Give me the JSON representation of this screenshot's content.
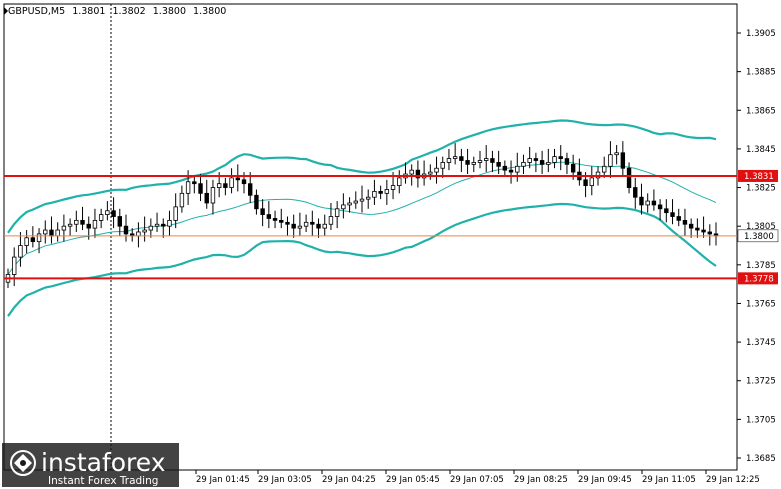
{
  "header": {
    "symbol": "GBPUSD,M5",
    "open": "1.3801",
    "high": "1.3802",
    "low": "1.3800",
    "close": "1.3800"
  },
  "price_axis": {
    "min": 1.368,
    "max": 1.392,
    "ticks": [
      "1.3905",
      "1.3885",
      "1.3865",
      "1.3845",
      "1.3825",
      "1.3805",
      "1.3785",
      "1.3765",
      "1.3745",
      "1.3725",
      "1.3705",
      "1.3685"
    ]
  },
  "time_axis": {
    "labels": [
      "29 Jan 01:45",
      "29 Jan 03:05",
      "29 Jan 04:25",
      "29 Jan 05:45",
      "29 Jan 07:05",
      "29 Jan 08:25",
      "29 Jan 09:45",
      "29 Jan 11:05",
      "29 Jan 12:25"
    ]
  },
  "levels": [
    {
      "name": "resistance",
      "price": 1.3831,
      "label": "1.3831",
      "color": "#e01010"
    },
    {
      "name": "support",
      "price": 1.3778,
      "label": "1.3778",
      "color": "#e01010"
    }
  ],
  "current_price": {
    "price": 1.38,
    "label": "1.3800",
    "color": "#f08040"
  },
  "logo": {
    "name": "instaforex",
    "tagline": "Instant Forex Trading"
  },
  "colors": {
    "bands": "#20b2aa",
    "candle_up_fill": "#ffffff",
    "candle_down_fill": "#000000",
    "candle_outline": "#000000",
    "grid": "#ffffff",
    "axis": "#000000"
  },
  "chart_data": {
    "type": "candlestick",
    "indicator": "bollinger_bands",
    "closes": [
      1.378,
      1.3789,
      1.3795,
      1.3799,
      1.3797,
      1.3801,
      1.3803,
      1.38,
      1.3803,
      1.3805,
      1.3806,
      1.3808,
      1.3806,
      1.3804,
      1.3808,
      1.3811,
      1.3813,
      1.381,
      1.3805,
      1.3801,
      1.38,
      1.3802,
      1.3803,
      1.3805,
      1.3806,
      1.3805,
      1.3808,
      1.3815,
      1.3822,
      1.3828,
      1.3827,
      1.3822,
      1.3817,
      1.3825,
      1.3827,
      1.3825,
      1.383,
      1.3829,
      1.3827,
      1.3821,
      1.3814,
      1.3811,
      1.3809,
      1.3808,
      1.3807,
      1.3806,
      1.3804,
      1.3805,
      1.3807,
      1.3806,
      1.3804,
      1.3806,
      1.381,
      1.3814,
      1.3816,
      1.3817,
      1.3818,
      1.3819,
      1.382,
      1.3823,
      1.3822,
      1.3824,
      1.3826,
      1.383,
      1.3832,
      1.3834,
      1.383,
      1.3832,
      1.3833,
      1.3835,
      1.3838,
      1.384,
      1.3841,
      1.3839,
      1.3837,
      1.3838,
      1.3839,
      1.384,
      1.3838,
      1.3836,
      1.3834,
      1.3833,
      1.3836,
      1.3838,
      1.384,
      1.3839,
      1.3837,
      1.3838,
      1.3841,
      1.384,
      1.3837,
      1.3833,
      1.3829,
      1.3826,
      1.383,
      1.3833,
      1.3836,
      1.3842,
      1.3843,
      1.3835,
      1.3825,
      1.382,
      1.3816,
      1.3818,
      1.3816,
      1.3814,
      1.3812,
      1.381,
      1.3808,
      1.3806,
      1.3804,
      1.3803,
      1.3802,
      1.3801,
      1.38
    ]
  }
}
